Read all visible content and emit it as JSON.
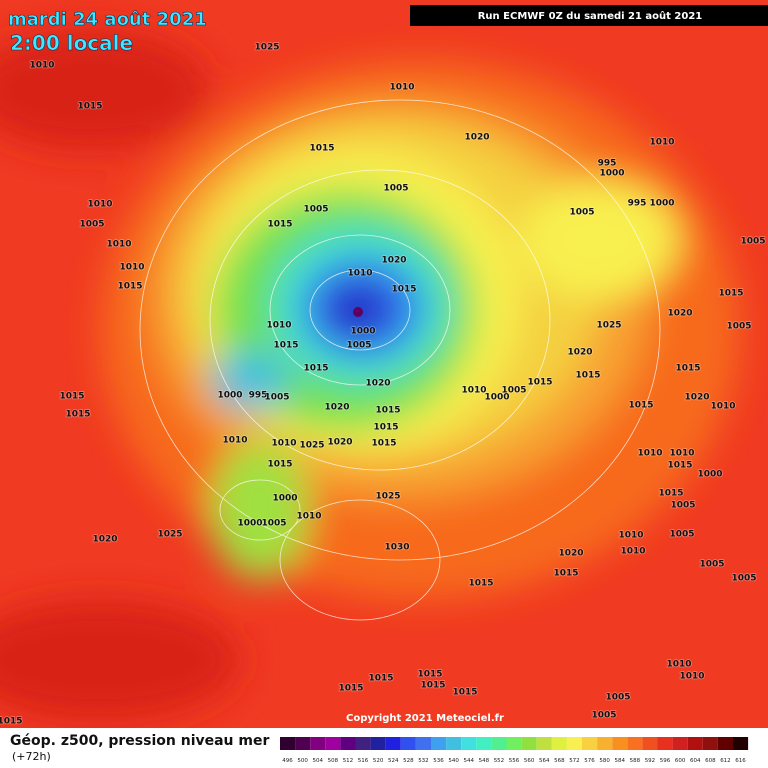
{
  "header": {
    "date": "mardi 24 août 2021",
    "time": "2:00 locale",
    "run": "Run ECMWF 0Z du samedi 21 août 2021"
  },
  "isobar_labels": [
    "1025",
    "1010",
    "1015",
    "1010",
    "1020",
    "1015",
    "1010",
    "995",
    "1000",
    "1005",
    "1005",
    "1005",
    "995",
    "1000",
    "1010",
    "1005",
    "1015",
    "1005",
    "1010",
    "1010",
    "1015",
    "1020",
    "1010",
    "1015",
    "1015",
    "1025",
    "1020",
    "1005",
    "1010",
    "1000",
    "1005",
    "1015",
    "1020",
    "1015",
    "1015",
    "1015",
    "1020",
    "1010",
    "1005",
    "1000",
    "1015",
    "1000",
    "995",
    "1005",
    "1015",
    "1020",
    "1010",
    "1015",
    "1015",
    "1020",
    "1015",
    "1010",
    "1010",
    "1025",
    "1020",
    "1015",
    "1015",
    "1010",
    "1010",
    "1015",
    "1000",
    "1015",
    "1025",
    "1000",
    "1015",
    "1005",
    "1010",
    "1000",
    "1005",
    "1020",
    "1025",
    "1010",
    "1005",
    "1030",
    "1010",
    "1020",
    "1015",
    "1005",
    "1005",
    "1015",
    "1010",
    "1010",
    "1015",
    "1015",
    "1015",
    "1015",
    "1015",
    "1005",
    "1005",
    "1015"
  ],
  "footer": {
    "copyright": "Copyright 2021 Meteociel.fr",
    "legend_title": "Géop. z500, pression niveau mer",
    "lead": "(+72h)"
  },
  "colorbar": {
    "labels": [
      496,
      500,
      504,
      508,
      512,
      516,
      520,
      524,
      528,
      532,
      536,
      540,
      544,
      548,
      552,
      556,
      560,
      564,
      568,
      572,
      576,
      580,
      584,
      588,
      592,
      596,
      600,
      604,
      608,
      612,
      616
    ],
    "colors": [
      "#300030",
      "#500050",
      "#800080",
      "#a000a0",
      "#600080",
      "#402080",
      "#2020a0",
      "#2020e0",
      "#3050f0",
      "#4070f0",
      "#40a0f0",
      "#40c0e0",
      "#40e0e0",
      "#40f0c0",
      "#50f090",
      "#70f060",
      "#90e040",
      "#c0e040",
      "#e0f040",
      "#f8f050",
      "#f8d040",
      "#f8b030",
      "#f89020",
      "#f87020",
      "#f05020",
      "#e83020",
      "#d02020",
      "#b01010",
      "#901010",
      "#600000",
      "#200000"
    ]
  }
}
